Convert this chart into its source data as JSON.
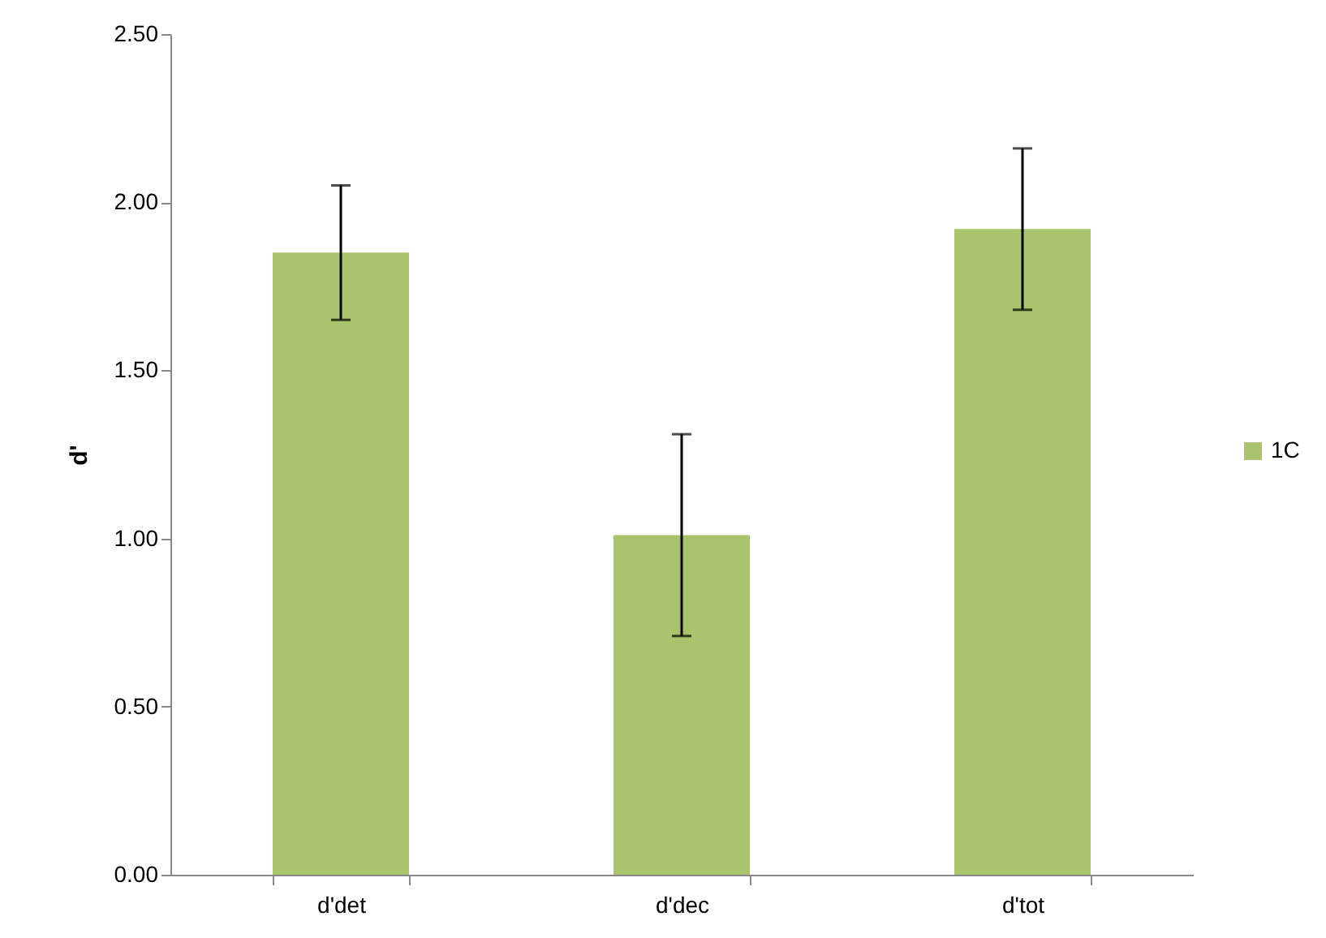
{
  "chart_data": {
    "type": "bar",
    "ylabel": "d'",
    "categories": [
      "d'det",
      "d'dec",
      "d'tot"
    ],
    "series": [
      {
        "name": "1C",
        "color": "#a9c46c",
        "values": [
          1.85,
          1.01,
          1.92
        ],
        "errors": [
          0.2,
          0.3,
          0.24
        ]
      }
    ],
    "ylim": [
      0,
      2.5
    ],
    "yticks": [
      {
        "value": 0,
        "label": "0.00"
      },
      {
        "value": 0.5,
        "label": "0.50"
      },
      {
        "value": 1,
        "label": "1.00"
      },
      {
        "value": 1.5,
        "label": "1.50"
      },
      {
        "value": 2,
        "label": "2.00"
      },
      {
        "value": 2.5,
        "label": "2.50"
      }
    ],
    "legend": "right",
    "grid": false
  }
}
